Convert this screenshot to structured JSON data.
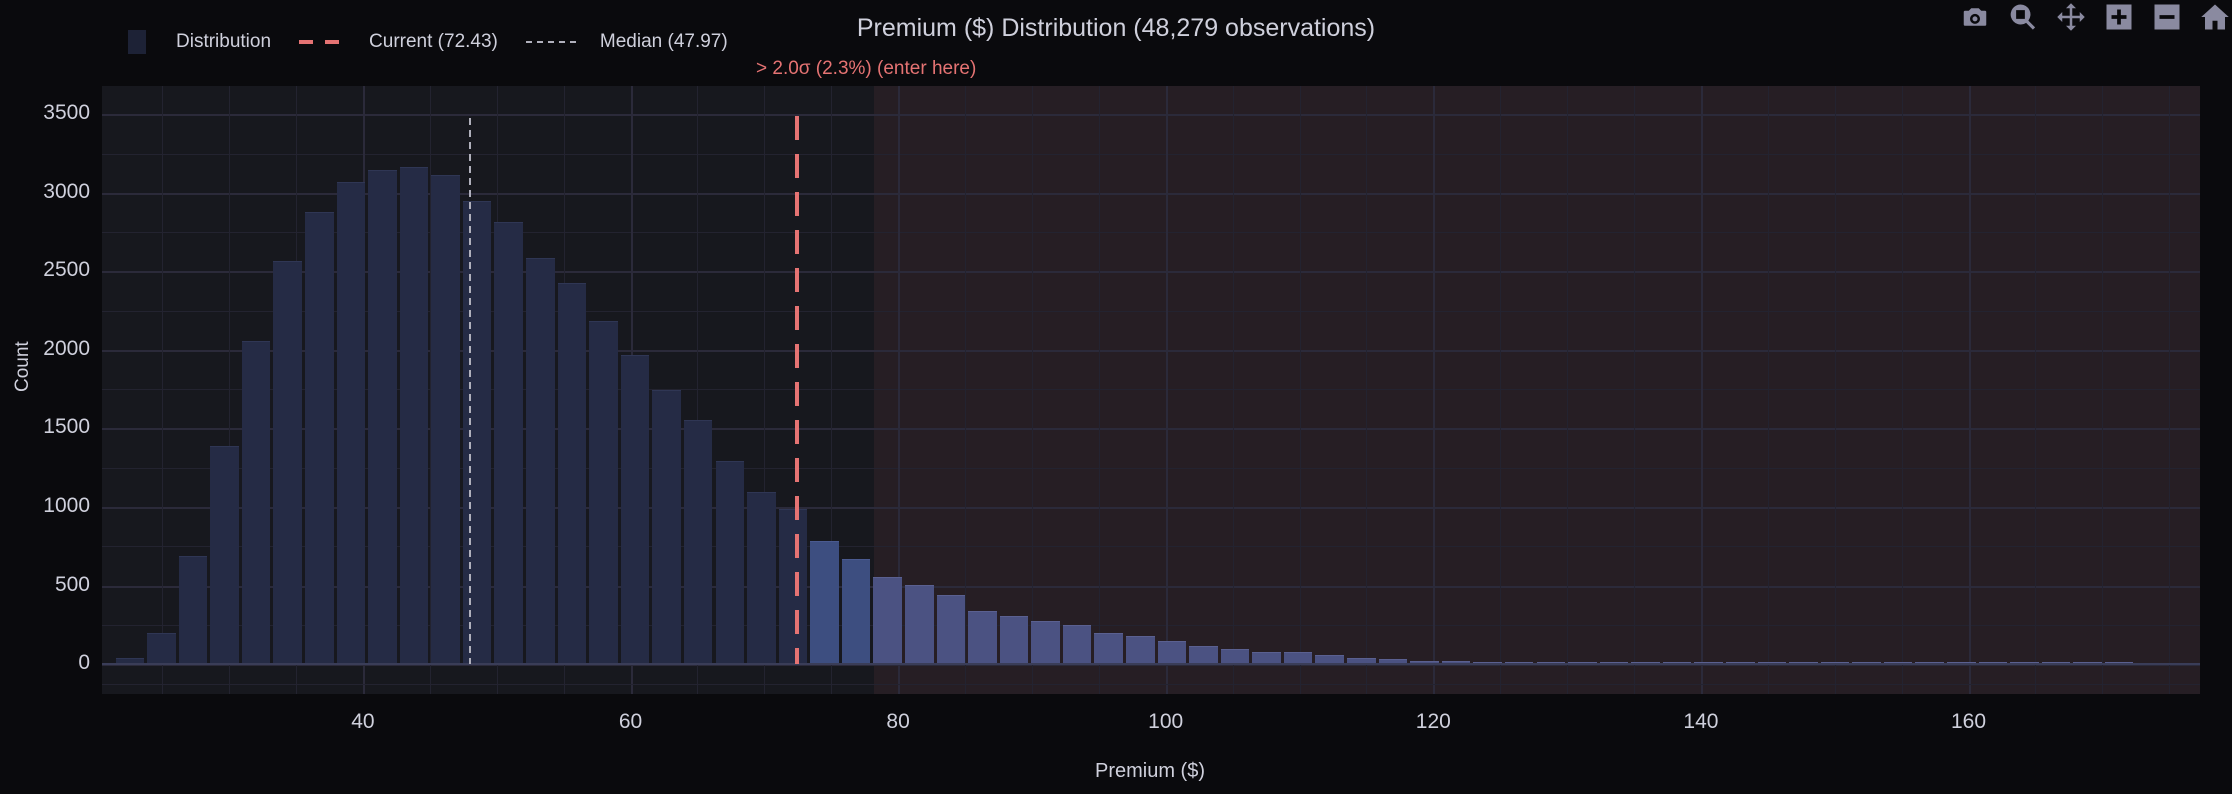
{
  "title": "Premium ($) Distribution (48,279 observations)",
  "legend": {
    "distribution": "Distribution",
    "current": "Current (72.43)",
    "median": "Median (47.97)"
  },
  "annotation": "> 2.0σ (2.3%) (enter here)",
  "toolbar": [
    {
      "name": "camera-icon",
      "label": "Download plot as png"
    },
    {
      "name": "zoom-icon",
      "label": "Zoom"
    },
    {
      "name": "pan-icon",
      "label": "Pan"
    },
    {
      "name": "zoom-in-icon",
      "label": "Zoom in"
    },
    {
      "name": "zoom-out-icon",
      "label": "Zoom out"
    },
    {
      "name": "home-icon",
      "label": "Reset axes"
    }
  ],
  "colors": {
    "background": "#0a0a0d",
    "plot_bg": "#17181e",
    "zone_bg": "#261e24",
    "bar": "#252b45",
    "bar_highlight": "#3d4e80",
    "bar_tail": "#4b5282",
    "current_line": "#e57373",
    "median_line": "#b0b0bc"
  },
  "chart_data": {
    "type": "bar",
    "title": "Premium ($) Distribution (48,279 observations)",
    "xlabel": "Premium ($)",
    "ylabel": "Count",
    "xlim": [
      20.5,
      177.3
    ],
    "ylim": [
      -190,
      3680
    ],
    "x_ticks": [
      40,
      60,
      80,
      100,
      120,
      140,
      160
    ],
    "y_ticks": [
      0,
      500,
      1000,
      1500,
      2000,
      2500,
      3000,
      3500
    ],
    "bin_start": 21.4,
    "bin_width": 2.36,
    "values": [
      30,
      190,
      680,
      1380,
      2050,
      2560,
      2870,
      3060,
      3140,
      3160,
      3110,
      2940,
      2810,
      2580,
      2420,
      2180,
      1960,
      1740,
      1550,
      1290,
      1090,
      980,
      775,
      665,
      550,
      500,
      435,
      330,
      300,
      270,
      240,
      195,
      170,
      140,
      110,
      90,
      70,
      70,
      50,
      35,
      25,
      15,
      12,
      8,
      6,
      5,
      6,
      10,
      10,
      8,
      5,
      4,
      4,
      6,
      3,
      3,
      3,
      8,
      4,
      3,
      3,
      2,
      3,
      2
    ],
    "reference_lines": [
      {
        "label": "Current (72.43)",
        "x": 72.43,
        "style": "dash",
        "color": "#e57373"
      },
      {
        "label": "Median (47.97)",
        "x": 47.97,
        "style": "dot",
        "color": "#b0b0bc"
      }
    ],
    "shaded_region": {
      "x_from": 78.2,
      "x_to": 177.3,
      "label": "> 2.0σ (2.3%) (enter here)"
    },
    "legend_position": "top-left",
    "grid": true
  }
}
